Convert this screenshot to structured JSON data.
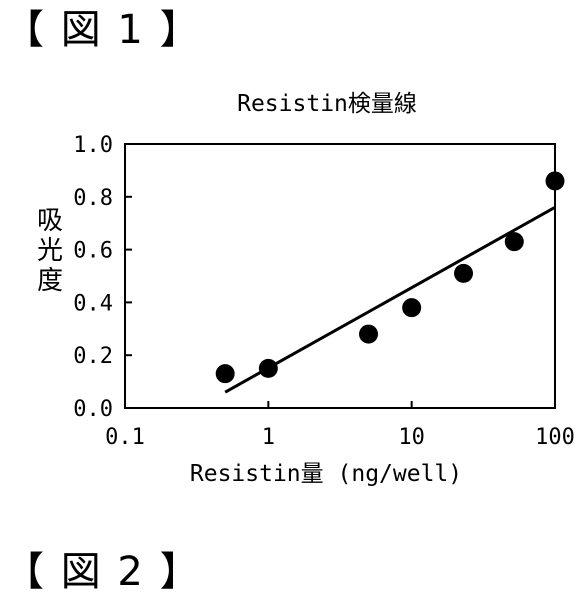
{
  "figure_labels": [
    "【 図 1 】",
    "【 図 2 】"
  ],
  "chart_data": {
    "type": "scatter",
    "title": "Resistin検量線",
    "xlabel": "Resistin量 (ng/well)",
    "ylabel": "吸光度",
    "x_scale": "log",
    "xlim": [
      0.1,
      100
    ],
    "ylim": [
      0.0,
      1.0
    ],
    "x_ticks": [
      0.1,
      1,
      10,
      100
    ],
    "x_tick_labels": [
      "0.1",
      "1",
      "10",
      "100"
    ],
    "y_ticks": [
      0.0,
      0.2,
      0.4,
      0.6,
      0.8,
      1.0
    ],
    "y_tick_labels": [
      "0.0",
      "0.2",
      "0.4",
      "0.6",
      "0.8",
      "1.0"
    ],
    "grid": false,
    "legend": "none",
    "series": [
      {
        "x": [
          0.5,
          1,
          5,
          10,
          23,
          52,
          100
        ],
        "y": [
          0.13,
          0.15,
          0.28,
          0.38,
          0.51,
          0.63,
          0.86
        ]
      }
    ],
    "fit_line": {
      "x": [
        0.5,
        100
      ],
      "y": [
        0.06,
        0.76
      ]
    },
    "colors": {
      "marker": "#000000",
      "line": "#000000"
    }
  }
}
